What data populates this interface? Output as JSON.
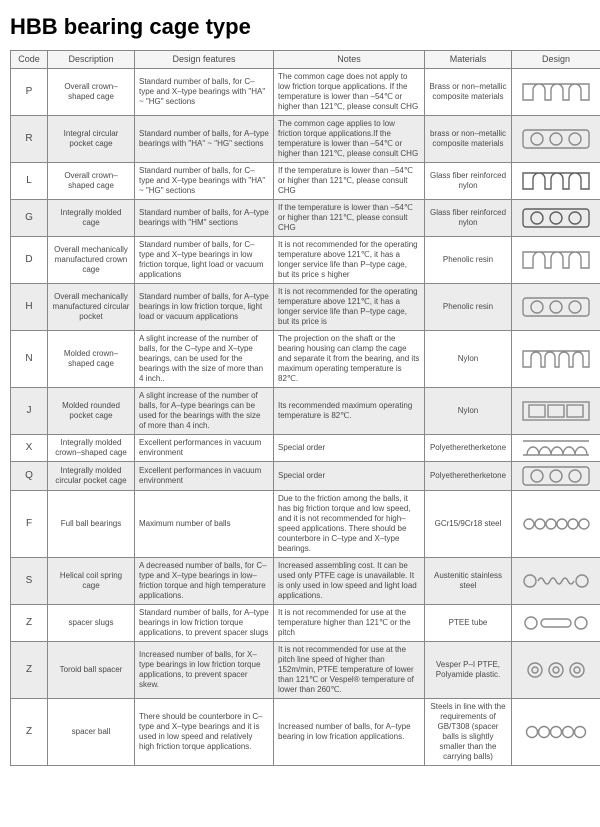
{
  "title": "HBB bearing cage type",
  "headers": {
    "code": "Code",
    "description": "Description",
    "features": "Design features",
    "notes": "Notes",
    "materials": "Materials",
    "design": "Design"
  },
  "rows": [
    {
      "code": "P",
      "desc": "Overall crown–shaped cage",
      "feat": "Standard number of balls, for C–type and X–type bearings with \"HA\" ~ \"HG\" sections",
      "notes": "The common cage does not apply to low friction torque applications. If the temperature is lower than –54℃ or higher than 121℃, please consult CHG",
      "mat": "Brass or non–metallic composite materials",
      "icon": "crown",
      "iconColor": "#8a8a8a",
      "alt": false
    },
    {
      "code": "R",
      "desc": "Integral circular pocket cage",
      "feat": "Standard number of balls, for A–type bearings with \"HA\" ~ \"HG\" sections",
      "notes": "The common cage applies to low friction torque applications.If the temperature is lower than –54℃ or higher than 121℃, please consult CHG",
      "mat": "brass or non–metallic composite materials",
      "icon": "rect3",
      "iconColor": "#8a8a8a",
      "alt": true
    },
    {
      "code": "L",
      "desc": "Overall crown–shaped cage",
      "feat": "Standard number of balls, for C–type and X–type bearings with \"HA\" ~ \"HG\" sections",
      "notes": "If the temperature is lower than –54℃ or higher than 121℃, please consult CHG",
      "mat": "Glass fiber reinforced nylon",
      "icon": "crown",
      "iconColor": "#606060",
      "alt": false
    },
    {
      "code": "G",
      "desc": "Integrally molded cage",
      "feat": "Standard number of balls, for A–type bearings with \"HM\" sections",
      "notes": "If the temperature is lower than –54℃ or higher than 121℃, please consult CHG",
      "mat": "Glass fiber reinforced nylon",
      "icon": "rect3",
      "iconColor": "#606060",
      "alt": true
    },
    {
      "code": "D",
      "desc": "Overall mechanically manufactured crown cage",
      "feat": "Standard number of balls, for C–type and X–type bearings in low friction torque, light load or vacuum applications",
      "notes": "It is not recommended for the operating temperature above 121℃, it has a longer service life than P–type cage, but its price s higher",
      "mat": "Phenolic resin",
      "icon": "crown",
      "iconColor": "#8a8a8a",
      "alt": false
    },
    {
      "code": "H",
      "desc": "Overall mechanically manufactured circular pocket",
      "feat": "Standard number of balls, for A–type bearings in low friction torque, light load or vacuum applications",
      "notes": "It is not recommended for the operating temperature above 121℃, it has a longer service life than P–type cage, but its price is",
      "mat": "Phenolic resin",
      "icon": "rect3",
      "iconColor": "#8a8a8a",
      "alt": true
    },
    {
      "code": "N",
      "desc": "Molded crown–shaped cage",
      "feat": "A slight increase of the number of balls, for the C–type and X–type bearings, can be used for the bearings with the size of more than 4 inch..",
      "notes": "The projection on the shaft or the bearing housing can clamp the cage and separate it from the bearing, and its maximum operating temperature is 82℃.",
      "mat": "Nylon",
      "icon": "crown4",
      "iconColor": "#8a8a8a",
      "alt": false
    },
    {
      "code": "J",
      "desc": "Molded rounded pocket cage",
      "feat": "A slight increase of the number of balls, for A–type bearings can be used for the bearings with the size of more than 4 inch.",
      "notes": "Its recommended maximum operating temperature is 82℃.",
      "mat": "Nylon",
      "icon": "rect3s",
      "iconColor": "#8a8a8a",
      "alt": true
    },
    {
      "code": "X",
      "desc": "Integrally molded crown–shaped cage",
      "feat": "Excellent performances in vacuum environment",
      "notes": "Special order",
      "mat": "Polyetheretherketone",
      "icon": "wave",
      "iconColor": "#8a8a8a",
      "alt": false
    },
    {
      "code": "Q",
      "desc": "Integrally molded circular pocket cage",
      "feat": "Excellent performances in vacuum environment",
      "notes": "Special order",
      "mat": "Polyetheretherketone",
      "icon": "rect3",
      "iconColor": "#8a8a8a",
      "alt": true
    },
    {
      "code": "F",
      "desc": "Full ball bearings",
      "feat": "Maximum number of balls",
      "notes": "Due to the friction among the balls, it has big friction torque and low speed, and it is not recommended for high–speed applications. There should be counterbore in C–type and X–type bearings.",
      "mat": "GCr15/9Cr18 steel",
      "icon": "circ6",
      "iconColor": "#8a8a8a",
      "alt": false
    },
    {
      "code": "S",
      "desc": "Helical coil spring cage",
      "feat": "A decreased number of balls, for C–type and X–type bearings in low–friction torque and high temperature applications.",
      "notes": "Increased assembling cost. It can be used only PTFE cage is unavailable. It is only used in low speed and light load applications.",
      "mat": "Austenitic stainless steel",
      "icon": "spring",
      "iconColor": "#8a8a8a",
      "alt": true
    },
    {
      "code": "Z",
      "desc": "spacer slugs",
      "feat": "Standard number of balls, for A–type bearings in low friction torque applications, to prevent spacer slugs",
      "notes": "It is not recommended for use at the temperature higher than 121℃ or the pitch",
      "mat": "PTEE tube",
      "icon": "slug",
      "iconColor": "#8a8a8a",
      "alt": false
    },
    {
      "code": "Z",
      "desc": "Toroid ball spacer",
      "feat": "Increased number of balls, for X–type bearings in low friction torque applications, to prevent spacer skew.",
      "notes": "It is not recommended for use at the pitch line speed of higher than 152m/min, PTFE temperature of lower than 121℃ or Vespel® temperature of lower than 260℃.",
      "mat": "Vesper P–I PTFE, Polyamide plastic.",
      "icon": "toroid",
      "iconColor": "#8a8a8a",
      "alt": true
    },
    {
      "code": "Z",
      "desc": "spacer ball",
      "feat": "There should be counterbore in C–type and X–type bearings and it is used in low speed and relatively high friction torque applications.",
      "notes": "Increased number of balls, for A–type bearing in low frication applications.",
      "mat": "Steels in line with the requirements of GB/T308 (spacer balls is slightly smaller than the carrying balls)",
      "icon": "circ5",
      "iconColor": "#8a8a8a",
      "alt": false
    }
  ],
  "colors": {
    "border": "#888888",
    "altRow": "#ececec",
    "text": "#4a4a4a"
  }
}
